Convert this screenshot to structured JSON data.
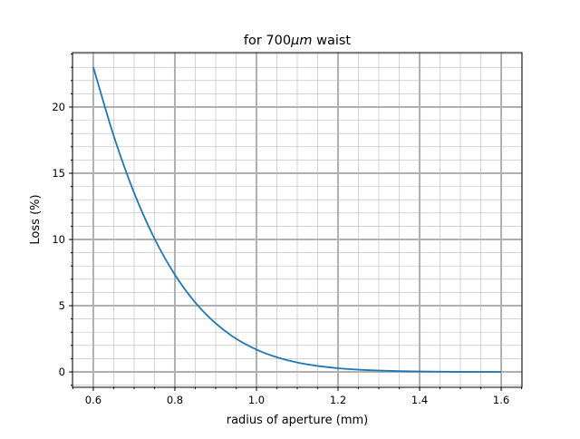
{
  "chart_data": {
    "type": "line",
    "title": {
      "prefix": "for 700",
      "unit": "μm",
      "suffix": " waist"
    },
    "xlabel": "radius of aperture (mm)",
    "ylabel": "Loss (%)",
    "xlim": [
      0.549,
      1.651
    ],
    "ylim": [
      -1.16,
      24.11
    ],
    "xticks": [
      0.6,
      0.8,
      1.0,
      1.2,
      1.4,
      1.6
    ],
    "xtick_labels": [
      "0.6",
      "0.8",
      "1.0",
      "1.2",
      "1.4",
      "1.6"
    ],
    "yticks": [
      0,
      5,
      10,
      15,
      20
    ],
    "ytick_labels": [
      "0",
      "5",
      "10",
      "15",
      "20"
    ],
    "x_minor_step": 0.05,
    "y_minor_step": 1,
    "grid": true,
    "series": [
      {
        "name": "loss",
        "color": "#1f77b4",
        "x": [
          0.6,
          0.65,
          0.7,
          0.75,
          0.8,
          0.85,
          0.9,
          0.95,
          1.0,
          1.05,
          1.1,
          1.15,
          1.2,
          1.25,
          1.3,
          1.35,
          1.4,
          1.45,
          1.5,
          1.55,
          1.6
        ],
        "y": [
          23.01,
          17.83,
          13.53,
          10.07,
          7.34,
          5.24,
          3.67,
          2.51,
          1.69,
          1.11,
          0.716,
          0.453,
          0.28,
          0.17,
          0.101,
          0.059,
          0.034,
          0.019,
          0.01,
          0.0055,
          0.0029
        ]
      }
    ]
  }
}
